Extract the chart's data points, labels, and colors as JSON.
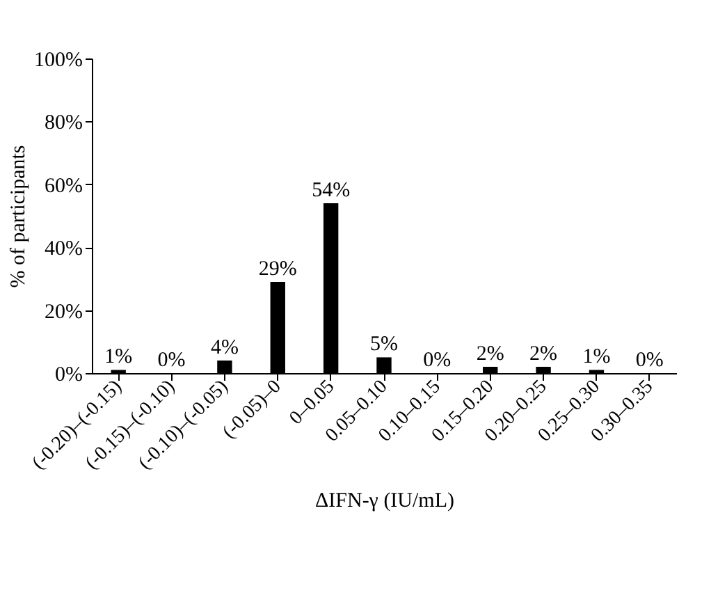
{
  "chart_data": {
    "type": "bar",
    "xlabel": "ΔIFN-γ (IU/mL)",
    "ylabel": "% of participants",
    "categories": [
      "(-0.20)–(-0.15)",
      "(-0.15)–(-0.10)",
      "(-0.10)–(-0.05)",
      "(-0.05)–0",
      "0–0.05",
      "0.05–0.10",
      "0.10–0.15",
      "0.15–0.20",
      "0.20–0.25",
      "0.25–0.30",
      "0.30–0.35"
    ],
    "values": [
      1,
      0,
      4,
      29,
      54,
      5,
      0,
      2,
      2,
      1,
      0
    ],
    "value_labels": [
      "1%",
      "0%",
      "4%",
      "29%",
      "54%",
      "5%",
      "0%",
      "2%",
      "2%",
      "1%",
      "0%"
    ],
    "color": "#000000",
    "ylim": [
      0,
      100
    ],
    "yticks": [
      {
        "value": 0,
        "label": "0%"
      },
      {
        "value": 20,
        "label": "20%"
      },
      {
        "value": 40,
        "label": "40%"
      },
      {
        "value": 60,
        "label": "60%"
      },
      {
        "value": 80,
        "label": "80%"
      },
      {
        "value": 100,
        "label": "100%"
      }
    ],
    "grid": false
  }
}
